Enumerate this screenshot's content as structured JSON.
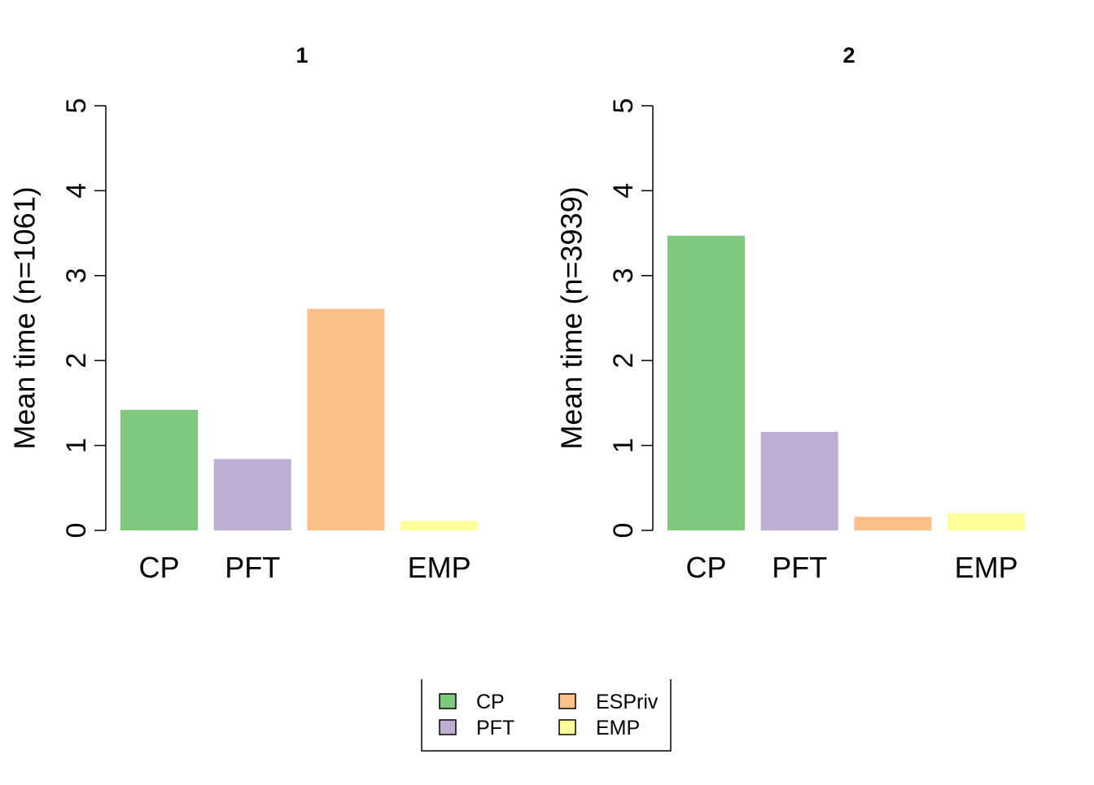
{
  "chart_data": [
    {
      "type": "bar",
      "title": "1",
      "ylabel": "Mean time (n=1061)",
      "categories": [
        "CP",
        "PFT",
        "ESPriv",
        "EMP"
      ],
      "category_labels_shown": [
        "CP",
        "PFT",
        "",
        "EMP"
      ],
      "values": [
        1.42,
        0.84,
        2.61,
        0.11
      ],
      "colors": [
        "#7FC97F",
        "#BEAED4",
        "#FDC086",
        "#FFFF99"
      ],
      "ylim": [
        0,
        5
      ],
      "yticks": [
        "0",
        "1",
        "2",
        "3",
        "4",
        "5"
      ],
      "grid": false
    },
    {
      "type": "bar",
      "title": "2",
      "ylabel": "Mean time (n=3939)",
      "categories": [
        "CP",
        "PFT",
        "ESPriv",
        "EMP"
      ],
      "category_labels_shown": [
        "CP",
        "PFT",
        "",
        "EMP"
      ],
      "values": [
        3.47,
        1.16,
        0.16,
        0.2
      ],
      "colors": [
        "#7FC97F",
        "#BEAED4",
        "#FDC086",
        "#FFFF99"
      ],
      "ylim": [
        0,
        5
      ],
      "yticks": [
        "0",
        "1",
        "2",
        "3",
        "4",
        "5"
      ],
      "grid": false
    }
  ],
  "legend": {
    "placement": "bottom-center",
    "items": [
      {
        "label": "CP",
        "color": "#7FC97F"
      },
      {
        "label": "PFT",
        "color": "#BEAED4"
      },
      {
        "label": "ESPriv",
        "color": "#FDC086"
      },
      {
        "label": "EMP",
        "color": "#FFFF99"
      }
    ]
  }
}
